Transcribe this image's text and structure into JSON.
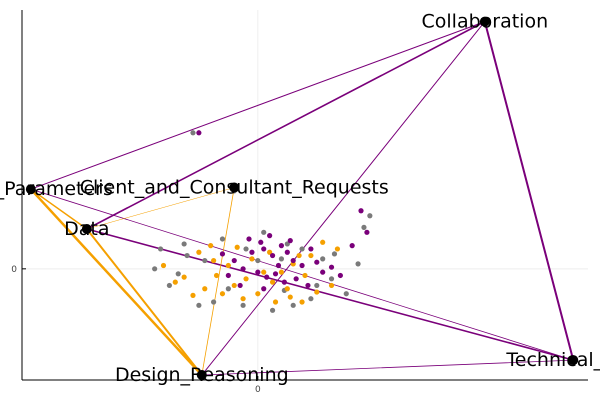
{
  "chart_data": {
    "type": "scatter",
    "grid": true,
    "legend": "none",
    "xlim": [
      -0.8,
      1.12
    ],
    "ylim": [
      -0.67,
      1.56
    ],
    "x_ticks": [
      {
        "value": 0,
        "label": "0"
      }
    ],
    "y_ticks": [
      {
        "value": 0,
        "label": "0"
      }
    ],
    "colors": {
      "orange": "#f5a000",
      "purple": "#7a007a",
      "gray": "#7a7a7a",
      "node": "#000000",
      "grid": "#eeeeee",
      "axis": "#000000"
    },
    "nodes": [
      {
        "id": "collab",
        "label": "Collaboration",
        "x": 0.77,
        "y": 1.49
      },
      {
        "id": "ccr",
        "label": "Client_and_Consultant_Requests",
        "x": -0.08,
        "y": 0.49
      },
      {
        "id": "perf",
        "label": "ance_Parameters",
        "x": -0.77,
        "y": 0.48
      },
      {
        "id": "data",
        "label": "Data",
        "x": -0.58,
        "y": 0.24
      },
      {
        "id": "design",
        "label": "Design_Reasoning",
        "x": -0.19,
        "y": -0.64
      },
      {
        "id": "tech",
        "label": "Technical_Con",
        "x": 1.07,
        "y": -0.55
      }
    ],
    "edges": [
      {
        "from": "perf",
        "to": "collab",
        "color": "purple",
        "width": 1
      },
      {
        "from": "data",
        "to": "collab",
        "color": "purple",
        "width": 1.6
      },
      {
        "from": "collab",
        "to": "tech",
        "color": "purple",
        "width": 2
      },
      {
        "from": "design",
        "to": "collab",
        "color": "purple",
        "width": 1
      },
      {
        "from": "data",
        "to": "tech",
        "color": "purple",
        "width": 1.6
      },
      {
        "from": "perf",
        "to": "tech",
        "color": "purple",
        "width": 0.8
      },
      {
        "from": "design",
        "to": "tech",
        "color": "purple",
        "width": 0.8
      },
      {
        "from": "perf",
        "to": "design",
        "color": "orange",
        "width": 2.5
      },
      {
        "from": "data",
        "to": "design",
        "color": "orange",
        "width": 2
      },
      {
        "from": "perf",
        "to": "data",
        "color": "orange",
        "width": 1.5
      },
      {
        "from": "design",
        "to": "ccr",
        "color": "orange",
        "width": 0.8
      },
      {
        "from": "data",
        "to": "ccr",
        "color": "orange",
        "width": 0.5
      }
    ],
    "points": {
      "purple": [
        [
          -0.2,
          0.82
        ],
        [
          0.35,
          0.35
        ],
        [
          0.37,
          0.22
        ],
        [
          0.32,
          0.14
        ],
        [
          -0.02,
          0.1
        ],
        [
          0.02,
          0.12
        ],
        [
          0.05,
          0.08
        ],
        [
          0.08,
          0.14
        ],
        [
          0.1,
          0.1
        ],
        [
          0.12,
          0.05
        ],
        [
          0.15,
          0.02
        ],
        [
          0.0,
          -0.02
        ],
        [
          -0.05,
          0.0
        ],
        [
          -0.08,
          0.05
        ],
        [
          0.03,
          -0.05
        ],
        [
          0.06,
          -0.03
        ],
        [
          0.09,
          -0.08
        ],
        [
          0.13,
          -0.06
        ],
        [
          -0.1,
          -0.04
        ],
        [
          0.2,
          0.04
        ],
        [
          0.22,
          -0.02
        ],
        [
          0.25,
          0.01
        ],
        [
          -0.03,
          0.18
        ],
        [
          0.01,
          0.16
        ],
        [
          0.04,
          0.2
        ],
        [
          0.07,
          0.02
        ],
        [
          0.11,
          0.17
        ],
        [
          0.17,
          -0.1
        ],
        [
          -0.12,
          0.09
        ],
        [
          0.02,
          -0.12
        ],
        [
          0.28,
          -0.04
        ],
        [
          0.18,
          0.12
        ],
        [
          -0.06,
          -0.1
        ]
      ],
      "orange": [
        [
          -0.32,
          0.02
        ],
        [
          -0.2,
          0.1
        ],
        [
          -0.15,
          0.05
        ],
        [
          -0.25,
          -0.05
        ],
        [
          -0.18,
          -0.12
        ],
        [
          -0.12,
          -0.15
        ],
        [
          -0.08,
          -0.1
        ],
        [
          -0.05,
          -0.18
        ],
        [
          0.0,
          -0.15
        ],
        [
          0.05,
          -0.08
        ],
        [
          0.1,
          -0.12
        ],
        [
          0.15,
          -0.2
        ],
        [
          0.02,
          -0.02
        ],
        [
          -0.1,
          0.02
        ],
        [
          -0.02,
          0.06
        ],
        [
          0.08,
          -0.02
        ],
        [
          0.18,
          0.08
        ],
        [
          -0.22,
          -0.16
        ],
        [
          0.2,
          -0.14
        ],
        [
          0.25,
          -0.1
        ],
        [
          0.12,
          0.03
        ],
        [
          -0.14,
          -0.04
        ],
        [
          0.06,
          -0.2
        ],
        [
          -0.04,
          -0.06
        ],
        [
          0.16,
          -0.04
        ],
        [
          0.27,
          0.12
        ],
        [
          -0.28,
          -0.08
        ],
        [
          0.22,
          0.16
        ],
        [
          -0.07,
          0.13
        ],
        [
          0.11,
          -0.17
        ],
        [
          0.04,
          0.1
        ],
        [
          -0.16,
          0.14
        ],
        [
          0.14,
          0.08
        ]
      ],
      "gray": [
        [
          -0.22,
          0.82
        ],
        [
          -0.08,
          0.47
        ],
        [
          0.36,
          0.25
        ],
        [
          0.38,
          0.32
        ],
        [
          0.34,
          0.03
        ],
        [
          0.2,
          -0.1
        ],
        [
          0.3,
          -0.15
        ],
        [
          0.18,
          -0.18
        ],
        [
          -0.27,
          -0.03
        ],
        [
          -0.3,
          -0.1
        ],
        [
          -0.25,
          0.15
        ],
        [
          -0.15,
          -0.2
        ],
        [
          -0.05,
          -0.22
        ],
        [
          0.05,
          -0.25
        ],
        [
          0.12,
          -0.22
        ],
        [
          -0.1,
          -0.12
        ],
        [
          0.0,
          0.05
        ],
        [
          0.08,
          0.06
        ],
        [
          -0.12,
          0.18
        ],
        [
          -0.04,
          0.12
        ],
        [
          0.1,
          0.15
        ],
        [
          0.15,
          0.12
        ],
        [
          0.22,
          0.06
        ],
        [
          -0.33,
          0.12
        ],
        [
          -0.35,
          0.0
        ],
        [
          -0.2,
          -0.22
        ],
        [
          0.25,
          -0.06
        ],
        [
          0.02,
          0.22
        ],
        [
          -0.18,
          0.05
        ],
        [
          0.26,
          0.09
        ],
        [
          -0.24,
          0.08
        ],
        [
          0.09,
          -0.13
        ]
      ]
    }
  }
}
